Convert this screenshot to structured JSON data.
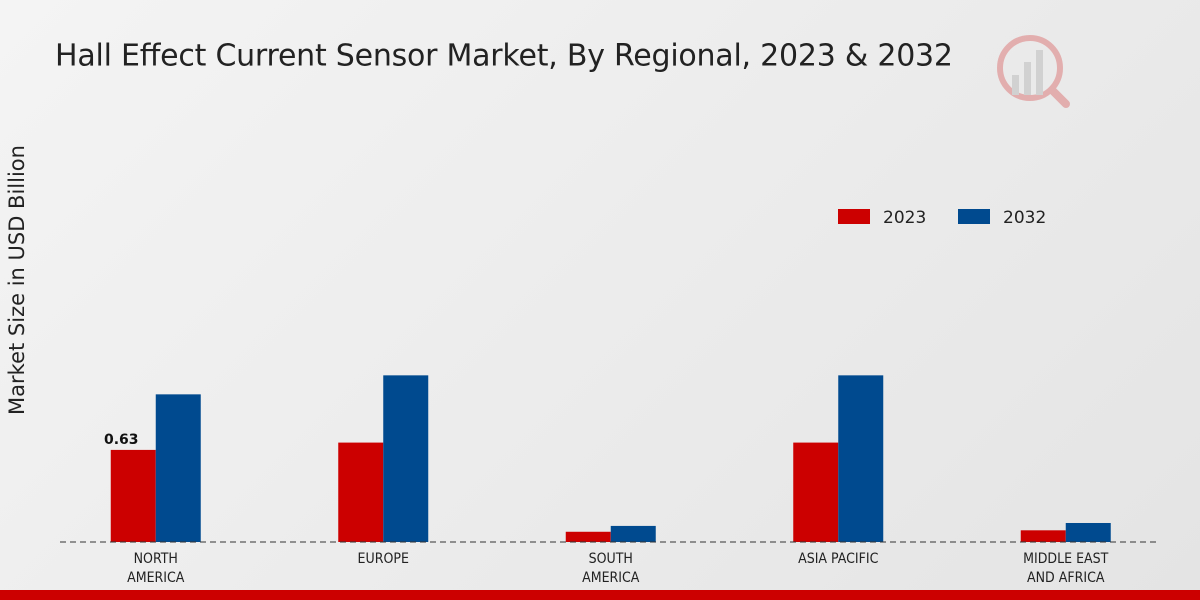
{
  "chart_data": {
    "type": "bar",
    "title": "Hall Effect Current Sensor Market, By Regional, 2023 & 2032",
    "y_axis_label": "Market Size in USD Billion",
    "categories": [
      "NORTH AMERICA",
      "EUROPE",
      "SOUTH AMERICA",
      "ASIA PACIFIC",
      "MIDDLE EAST AND AFRICA"
    ],
    "series": [
      {
        "name": "2023",
        "color": "#cc0000",
        "values": [
          0.63,
          0.68,
          0.07,
          0.68,
          0.08
        ]
      },
      {
        "name": "2032",
        "color": "#004a8f",
        "values": [
          1.01,
          1.14,
          0.11,
          1.14,
          0.13
        ]
      }
    ],
    "data_labels": [
      [
        0,
        0
      ]
    ],
    "ylim": [
      0,
      2.1
    ]
  }
}
